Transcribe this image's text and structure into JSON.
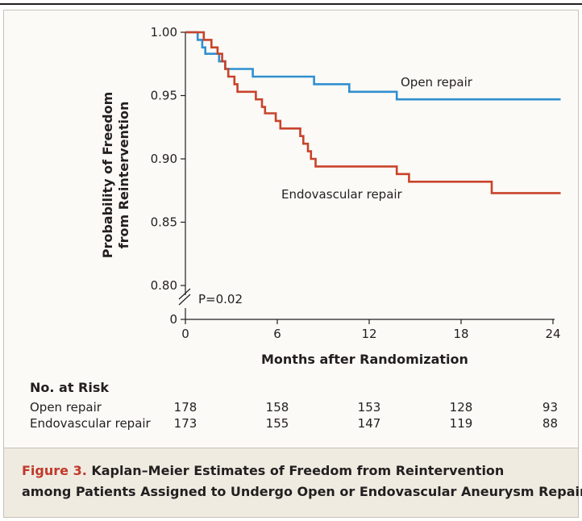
{
  "chart_data": {
    "type": "line",
    "subtype": "kaplan-meier step plot",
    "xlabel": "Months after Randomization",
    "ylabel_line1": "Probability of Freedom",
    "ylabel_line2": "from Reintervention",
    "xlim": [
      0,
      24.5
    ],
    "ylim": [
      0.8,
      1.0
    ],
    "y_axis_break": true,
    "y_zero_label": "0",
    "x_ticks": [
      0,
      6,
      12,
      18,
      24
    ],
    "y_ticks": [
      1.0,
      0.95,
      0.9,
      0.85,
      0.8
    ],
    "y_tick_labels": [
      "1.00",
      "0.95",
      "0.90",
      "0.85",
      "0.80"
    ],
    "annotation": "P=0.02",
    "series": [
      {
        "name": "Open repair",
        "color": "#2f8fd0",
        "points": [
          [
            0,
            1.0
          ],
          [
            0.8,
            1.0
          ],
          [
            0.8,
            0.994
          ],
          [
            1.1,
            0.994
          ],
          [
            1.1,
            0.988
          ],
          [
            1.3,
            0.988
          ],
          [
            1.3,
            0.983
          ],
          [
            2.2,
            0.983
          ],
          [
            2.2,
            0.977
          ],
          [
            2.6,
            0.977
          ],
          [
            2.6,
            0.971
          ],
          [
            4.4,
            0.971
          ],
          [
            4.4,
            0.965
          ],
          [
            8.4,
            0.965
          ],
          [
            8.4,
            0.959
          ],
          [
            10.7,
            0.959
          ],
          [
            10.7,
            0.953
          ],
          [
            13.8,
            0.953
          ],
          [
            13.8,
            0.947
          ],
          [
            24.5,
            0.947
          ]
        ]
      },
      {
        "name": "Endovascular repair",
        "color": "#c8432b",
        "points": [
          [
            0,
            1.0
          ],
          [
            1.2,
            1.0
          ],
          [
            1.2,
            0.994
          ],
          [
            1.7,
            0.994
          ],
          [
            1.7,
            0.988
          ],
          [
            2.1,
            0.988
          ],
          [
            2.1,
            0.983
          ],
          [
            2.4,
            0.983
          ],
          [
            2.4,
            0.977
          ],
          [
            2.6,
            0.977
          ],
          [
            2.6,
            0.971
          ],
          [
            2.8,
            0.971
          ],
          [
            2.8,
            0.965
          ],
          [
            3.2,
            0.965
          ],
          [
            3.2,
            0.959
          ],
          [
            3.4,
            0.959
          ],
          [
            3.4,
            0.953
          ],
          [
            4.6,
            0.953
          ],
          [
            4.6,
            0.947
          ],
          [
            5.0,
            0.947
          ],
          [
            5.0,
            0.941
          ],
          [
            5.2,
            0.941
          ],
          [
            5.2,
            0.936
          ],
          [
            5.9,
            0.936
          ],
          [
            5.9,
            0.93
          ],
          [
            6.2,
            0.93
          ],
          [
            6.2,
            0.924
          ],
          [
            7.5,
            0.924
          ],
          [
            7.5,
            0.918
          ],
          [
            7.7,
            0.918
          ],
          [
            7.7,
            0.912
          ],
          [
            8.0,
            0.912
          ],
          [
            8.0,
            0.906
          ],
          [
            8.2,
            0.906
          ],
          [
            8.2,
            0.9
          ],
          [
            8.5,
            0.9
          ],
          [
            8.5,
            0.894
          ],
          [
            13.8,
            0.894
          ],
          [
            13.8,
            0.888
          ],
          [
            14.6,
            0.888
          ],
          [
            14.6,
            0.882
          ],
          [
            20.0,
            0.882
          ],
          [
            20.0,
            0.873
          ],
          [
            24.5,
            0.873
          ]
        ]
      }
    ],
    "series_label_open": "Open repair",
    "series_label_endo": "Endovascular repair"
  },
  "risk_table": {
    "title": "No. at Risk",
    "rows": [
      {
        "label": "Open repair",
        "values": [
          "178",
          "158",
          "153",
          "128",
          "93"
        ]
      },
      {
        "label": "Endovascular repair",
        "values": [
          "173",
          "155",
          "147",
          "119",
          "88"
        ]
      }
    ]
  },
  "caption": {
    "label": "Figure 3.",
    "line1_rest": " Kaplan–Meier Estimates of Freedom from Reintervention",
    "line2": "among Patients Assigned to Undergo Open or Endovascular Aneurysm Repair."
  }
}
